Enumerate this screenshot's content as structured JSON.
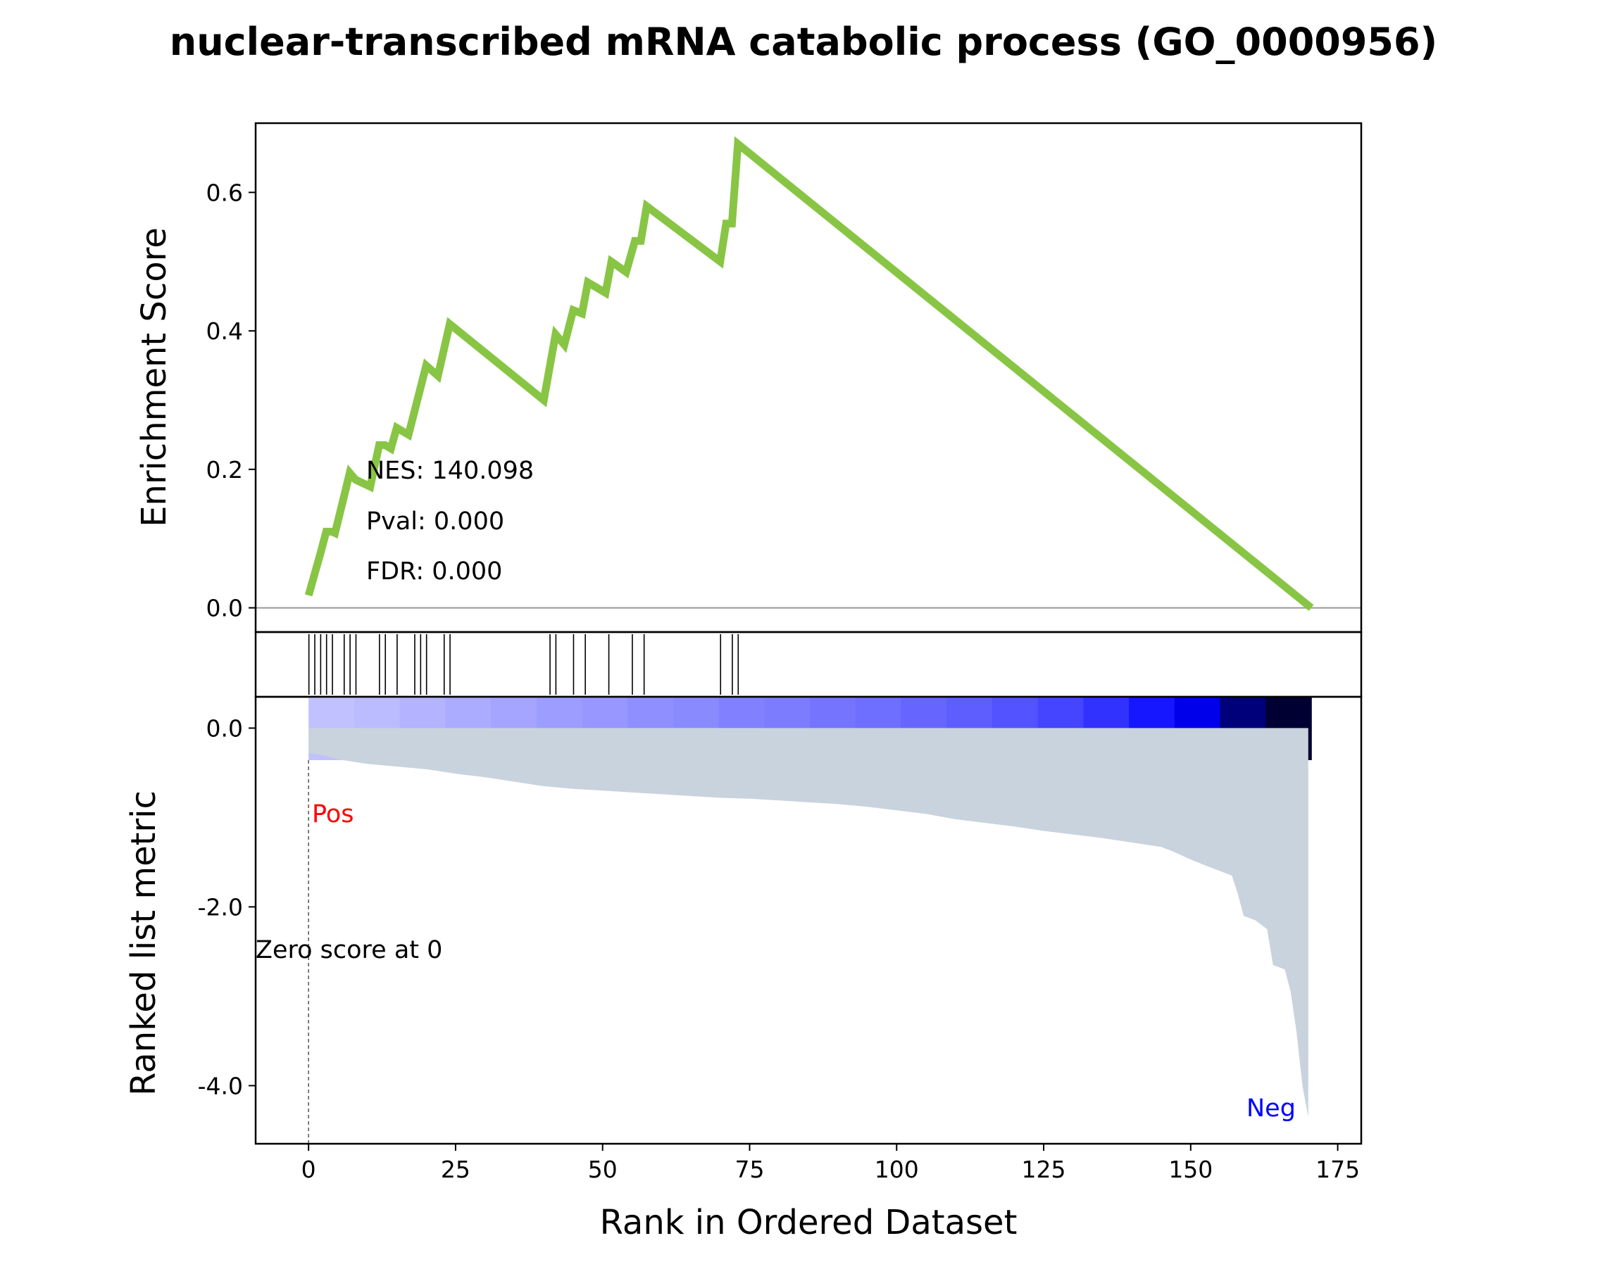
{
  "chart_data": {
    "type": "line",
    "title": "nuclear-transcribed mRNA catabolic process (GO_0000956)",
    "xlabel": "Rank in Ordered Dataset",
    "top_ylabel": "Enrichment Score",
    "bottom_ylabel": "Ranked list metric",
    "xlim": [
      -9,
      179
    ],
    "x_ticks": [
      0,
      25,
      50,
      75,
      100,
      125,
      150,
      175
    ],
    "x_tick_labels": [
      "0",
      "25",
      "50",
      "75",
      "100",
      "125",
      "150",
      "175"
    ],
    "es_ylim": [
      -0.035,
      0.7
    ],
    "es_ticks": [
      0.0,
      0.2,
      0.4,
      0.6
    ],
    "es_tick_labels": [
      "0.0",
      "0.2",
      "0.4",
      "0.6"
    ],
    "metric_ylim": [
      -4.65,
      0.35
    ],
    "metric_ticks": [
      0.0,
      -2.0,
      -4.0
    ],
    "metric_tick_labels": [
      "0.0",
      "-2.0",
      "-4.0"
    ],
    "stats": {
      "nes": "NES: 140.098",
      "pval": "Pval: 0.000",
      "fdr": "FDR: 0.000"
    },
    "pos_label": "Pos",
    "neg_label": "Neg",
    "zero_label": "Zero score at 0",
    "colors": {
      "es_line": "#88c544",
      "metric_fill": "#c9d3dd",
      "pos": "#ff0000",
      "neg": "#0000ff",
      "heat_light": "#dcdcff",
      "heat_dark": "#000033"
    },
    "gene_hits": [
      0,
      1,
      2,
      3,
      4,
      6,
      7,
      8,
      12,
      13,
      15,
      18,
      19,
      20,
      23,
      24,
      41,
      42,
      45,
      47,
      51,
      55,
      57,
      70,
      72,
      73
    ],
    "es_curve": [
      [
        0,
        0.018
      ],
      [
        1,
        0.048
      ],
      [
        2,
        0.078
      ],
      [
        3,
        0.11
      ],
      [
        4,
        0.11
      ],
      [
        4.5,
        0.108
      ],
      [
        6,
        0.16
      ],
      [
        7,
        0.195
      ],
      [
        8,
        0.185
      ],
      [
        10.5,
        0.175
      ],
      [
        12,
        0.235
      ],
      [
        13,
        0.235
      ],
      [
        14,
        0.23
      ],
      [
        15,
        0.26
      ],
      [
        17,
        0.25
      ],
      [
        20,
        0.35
      ],
      [
        22,
        0.335
      ],
      [
        24,
        0.41
      ],
      [
        40,
        0.3
      ],
      [
        42,
        0.395
      ],
      [
        43.5,
        0.38
      ],
      [
        45,
        0.43
      ],
      [
        46.5,
        0.425
      ],
      [
        47.5,
        0.47
      ],
      [
        50.5,
        0.455
      ],
      [
        51.5,
        0.5
      ],
      [
        54,
        0.485
      ],
      [
        55.5,
        0.53
      ],
      [
        56.5,
        0.53
      ],
      [
        57.5,
        0.58
      ],
      [
        70,
        0.5
      ],
      [
        71,
        0.555
      ],
      [
        72,
        0.555
      ],
      [
        73,
        0.67
      ],
      [
        170.5,
        0.0
      ]
    ],
    "metric_curve": [
      [
        0,
        -0.28
      ],
      [
        3,
        -0.31
      ],
      [
        5,
        -0.35
      ],
      [
        10,
        -0.4
      ],
      [
        15,
        -0.43
      ],
      [
        20,
        -0.46
      ],
      [
        25,
        -0.51
      ],
      [
        30,
        -0.55
      ],
      [
        35,
        -0.6
      ],
      [
        40,
        -0.65
      ],
      [
        45,
        -0.68
      ],
      [
        50,
        -0.7
      ],
      [
        55,
        -0.72
      ],
      [
        60,
        -0.74
      ],
      [
        65,
        -0.76
      ],
      [
        70,
        -0.78
      ],
      [
        75,
        -0.79
      ],
      [
        80,
        -0.81
      ],
      [
        85,
        -0.83
      ],
      [
        90,
        -0.85
      ],
      [
        95,
        -0.88
      ],
      [
        100,
        -0.92
      ],
      [
        105,
        -0.96
      ],
      [
        110,
        -1.02
      ],
      [
        115,
        -1.06
      ],
      [
        120,
        -1.1
      ],
      [
        125,
        -1.15
      ],
      [
        130,
        -1.19
      ],
      [
        135,
        -1.23
      ],
      [
        140,
        -1.28
      ],
      [
        145,
        -1.33
      ],
      [
        147,
        -1.38
      ],
      [
        150,
        -1.47
      ],
      [
        153,
        -1.55
      ],
      [
        155,
        -1.6
      ],
      [
        157,
        -1.65
      ],
      [
        158,
        -1.85
      ],
      [
        159,
        -2.1
      ],
      [
        161,
        -2.15
      ],
      [
        163,
        -2.25
      ],
      [
        164,
        -2.65
      ],
      [
        166,
        -2.7
      ],
      [
        167,
        -2.95
      ],
      [
        168,
        -3.4
      ],
      [
        169,
        -4.0
      ],
      [
        170,
        -4.35
      ]
    ],
    "heatmap_levels": [
      0.1,
      0.12,
      0.15,
      0.18,
      0.2,
      0.23,
      0.25,
      0.28,
      0.3,
      0.33,
      0.35,
      0.38,
      0.4,
      0.43,
      0.46,
      0.5,
      0.55,
      0.62,
      0.72,
      0.82,
      0.93,
      1.0
    ],
    "heatmap_range": [
      0,
      170.5
    ]
  }
}
